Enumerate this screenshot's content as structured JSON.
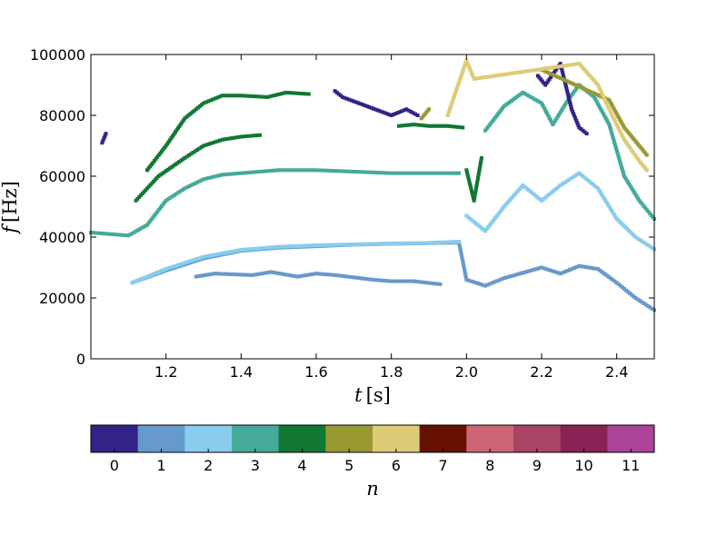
{
  "chart_data": [
    {
      "type": "scatter",
      "title": "",
      "xlabel": {
        "var": "t",
        "unit": "s"
      },
      "ylabel": {
        "var": "f",
        "unit": "Hz"
      },
      "xlim": [
        1.0,
        2.5
      ],
      "ylim": [
        0,
        100000
      ],
      "xticks": [
        1.2,
        1.4,
        1.6,
        1.8,
        2.0,
        2.2,
        2.4
      ],
      "xtick_labels": [
        "1.2",
        "1.4",
        "1.6",
        "1.8",
        "2.0",
        "2.2",
        "2.4"
      ],
      "yticks": [
        0,
        20000,
        40000,
        60000,
        80000,
        100000
      ],
      "ytick_labels": [
        "0",
        "20000",
        "40000",
        "60000",
        "80000",
        "100000"
      ],
      "grid": false,
      "series": [
        {
          "n": 1,
          "points": [
            [
              1.11,
              25000
            ],
            [
              1.2,
              29000
            ],
            [
              1.3,
              33000
            ],
            [
              1.4,
              35500
            ],
            [
              1.5,
              36500
            ],
            [
              1.6,
              37000
            ],
            [
              1.7,
              37500
            ],
            [
              1.8,
              37800
            ],
            [
              1.9,
              38000
            ],
            [
              1.98,
              38200
            ],
            [
              2.0,
              26000
            ],
            [
              2.05,
              24000
            ],
            [
              2.1,
              26500
            ],
            [
              2.2,
              30000
            ],
            [
              2.25,
              28000
            ],
            [
              2.3,
              30500
            ],
            [
              2.35,
              29500
            ],
            [
              2.4,
              25000
            ],
            [
              2.45,
              20000
            ],
            [
              2.5,
              16000
            ]
          ]
        },
        {
          "n": 1,
          "points": [
            [
              1.28,
              27000
            ],
            [
              1.33,
              28000
            ],
            [
              1.43,
              27500
            ],
            [
              1.48,
              28500
            ],
            [
              1.55,
              27000
            ],
            [
              1.6,
              28000
            ],
            [
              1.65,
              27500
            ],
            [
              1.75,
              26000
            ],
            [
              1.8,
              25500
            ],
            [
              1.86,
              25500
            ],
            [
              1.93,
              24500
            ]
          ]
        },
        {
          "n": 2,
          "points": [
            [
              1.11,
              25000
            ],
            [
              1.2,
              29500
            ],
            [
              1.3,
              33500
            ],
            [
              1.4,
              35800
            ],
            [
              1.5,
              36800
            ],
            [
              1.6,
              37300
            ],
            [
              1.7,
              37600
            ],
            [
              1.8,
              37900
            ],
            [
              1.9,
              38100
            ],
            [
              1.98,
              38500
            ]
          ]
        },
        {
          "n": 2,
          "points": [
            [
              2.0,
              47000
            ],
            [
              2.05,
              42000
            ],
            [
              2.1,
              50000
            ],
            [
              2.15,
              57000
            ],
            [
              2.2,
              52000
            ],
            [
              2.25,
              57000
            ],
            [
              2.3,
              61000
            ],
            [
              2.35,
              56000
            ],
            [
              2.4,
              46000
            ],
            [
              2.45,
              40000
            ],
            [
              2.5,
              36000
            ]
          ]
        },
        {
          "n": 3,
          "points": [
            [
              1.0,
              41500
            ],
            [
              1.05,
              41000
            ],
            [
              1.1,
              40500
            ],
            [
              1.15,
              44000
            ],
            [
              1.2,
              52000
            ],
            [
              1.25,
              56000
            ],
            [
              1.3,
              59000
            ],
            [
              1.35,
              60500
            ],
            [
              1.4,
              61000
            ],
            [
              1.5,
              62000
            ],
            [
              1.6,
              62000
            ],
            [
              1.7,
              61500
            ],
            [
              1.8,
              61000
            ],
            [
              1.9,
              61000
            ],
            [
              1.98,
              61000
            ]
          ]
        },
        {
          "n": 3,
          "points": [
            [
              2.05,
              75000
            ],
            [
              2.1,
              83000
            ],
            [
              2.15,
              87500
            ],
            [
              2.2,
              84000
            ],
            [
              2.23,
              77000
            ],
            [
              2.27,
              85000
            ],
            [
              2.3,
              90000
            ],
            [
              2.34,
              86000
            ],
            [
              2.38,
              77000
            ],
            [
              2.42,
              60000
            ],
            [
              2.46,
              52000
            ],
            [
              2.5,
              46000
            ]
          ]
        },
        {
          "n": 4,
          "points": [
            [
              1.12,
              52000
            ],
            [
              1.18,
              60000
            ],
            [
              1.25,
              66000
            ],
            [
              1.3,
              70000
            ],
            [
              1.35,
              72000
            ],
            [
              1.4,
              73000
            ],
            [
              1.45,
              73500
            ]
          ]
        },
        {
          "n": 4,
          "points": [
            [
              1.15,
              62000
            ],
            [
              1.2,
              70000
            ],
            [
              1.25,
              79000
            ],
            [
              1.3,
              84000
            ],
            [
              1.35,
              86500
            ],
            [
              1.4,
              86500
            ],
            [
              1.47,
              86000
            ],
            [
              1.52,
              87500
            ],
            [
              1.58,
              87000
            ]
          ]
        },
        {
          "n": 4,
          "points": [
            [
              1.82,
              76500
            ],
            [
              1.86,
              77000
            ],
            [
              1.9,
              76500
            ],
            [
              1.95,
              76500
            ],
            [
              1.99,
              76000
            ]
          ]
        },
        {
          "n": 4,
          "points": [
            [
              2.0,
              62000
            ],
            [
              2.02,
              52000
            ],
            [
              2.04,
              66000
            ]
          ]
        },
        {
          "n": 0,
          "points": [
            [
              1.03,
              71000
            ],
            [
              1.04,
              74000
            ],
            [
              1.65,
              88000
            ],
            [
              1.67,
              86000
            ],
            [
              1.8,
              80000
            ],
            [
              1.84,
              82000
            ],
            [
              1.87,
              80000
            ],
            [
              2.19,
              93000
            ],
            [
              2.21,
              90000
            ],
            [
              2.25,
              97000
            ],
            [
              2.28,
              82000
            ],
            [
              2.3,
              76000
            ],
            [
              2.32,
              74000
            ]
          ]
        },
        {
          "n": 5,
          "points": [
            [
              1.88,
              79000
            ],
            [
              1.9,
              82000
            ],
            [
              2.2,
              95000
            ],
            [
              2.38,
              85000
            ],
            [
              2.42,
              76000
            ],
            [
              2.46,
              70000
            ],
            [
              2.48,
              67000
            ]
          ]
        },
        {
          "n": 6,
          "points": [
            [
              1.95,
              80000
            ],
            [
              2.0,
              98000
            ],
            [
              2.02,
              92000
            ],
            [
              2.3,
              97000
            ],
            [
              2.35,
              90000
            ],
            [
              2.38,
              82000
            ],
            [
              2.42,
              72000
            ],
            [
              2.46,
              65000
            ],
            [
              2.48,
              62000
            ]
          ]
        }
      ]
    },
    {
      "type": "colorbar",
      "label": "n",
      "categories": [
        "0",
        "1",
        "2",
        "3",
        "4",
        "5",
        "6",
        "7",
        "8",
        "9",
        "10",
        "11"
      ],
      "colors": [
        "#332288",
        "#6699cc",
        "#88ccee",
        "#44aa99",
        "#117733",
        "#999933",
        "#ddcc77",
        "#661100",
        "#cc6677",
        "#aa4466",
        "#882255",
        "#aa4499"
      ]
    }
  ]
}
